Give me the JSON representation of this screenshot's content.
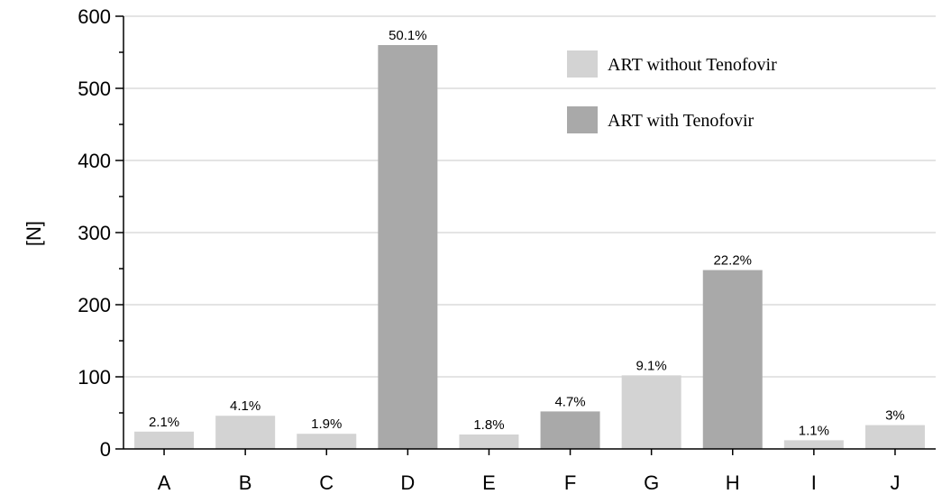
{
  "chart_data": {
    "type": "bar",
    "title": "",
    "xlabel": "",
    "ylabel": "[N]",
    "ylim": [
      0,
      600
    ],
    "yticks": [
      0,
      100,
      200,
      300,
      400,
      500,
      600
    ],
    "grid": "horizontal",
    "legend_position": "top-right",
    "categories": [
      "A",
      "B",
      "C",
      "D",
      "E",
      "F",
      "G",
      "H",
      "I",
      "J"
    ],
    "values": [
      24,
      46,
      21,
      560,
      20,
      52,
      102,
      248,
      12,
      33
    ],
    "data_labels": [
      "2.1%",
      "4.1%",
      "1.9%",
      "50.1%",
      "1.8%",
      "4.7%",
      "9.1%",
      "22.2%",
      "1.1%",
      "3%"
    ],
    "bar_series": [
      0,
      0,
      0,
      1,
      0,
      1,
      0,
      1,
      0,
      0
    ],
    "series": [
      {
        "name": "ART without Tenofovir",
        "color": "#d3d3d3"
      },
      {
        "name": "ART with Tenofovir",
        "color": "#a9a9a9"
      }
    ]
  }
}
